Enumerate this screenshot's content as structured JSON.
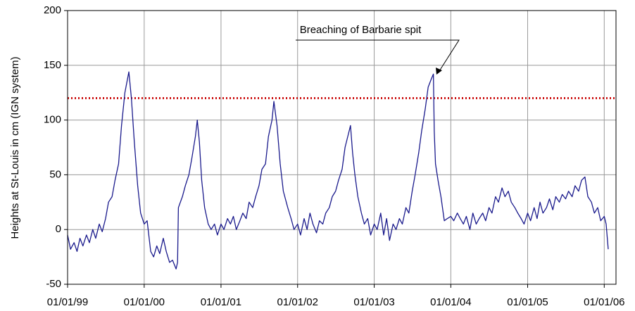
{
  "chart_data": {
    "type": "line",
    "y_label": "Heights at St-Louis in cm (IGN system)",
    "annotation": "Breaching of Barbarie spit",
    "ylim": [
      -50,
      200
    ],
    "yticks": [
      -50,
      0,
      50,
      100,
      150,
      200
    ],
    "xlim": [
      "1999-01-01",
      "2006-02-26"
    ],
    "xticks": [
      {
        "value": "1999-01-01",
        "label": "01/01/99"
      },
      {
        "value": "2000-01-01",
        "label": "01/01/00"
      },
      {
        "value": "2001-01-01",
        "label": "01/01/01"
      },
      {
        "value": "2002-01-01",
        "label": "01/01/02"
      },
      {
        "value": "2003-01-01",
        "label": "01/01/03"
      },
      {
        "value": "2004-01-01",
        "label": "01/01/04"
      },
      {
        "value": "2005-01-01",
        "label": "01/01/05"
      },
      {
        "value": "2006-01-01",
        "label": "01/01/06"
      }
    ],
    "grid": true,
    "threshold": {
      "value": 120,
      "color": "#cc1111"
    },
    "x": [
      "1999-01-01",
      "1999-01-15",
      "1999-02-01",
      "1999-02-15",
      "1999-03-01",
      "1999-03-15",
      "1999-04-01",
      "1999-04-15",
      "1999-05-01",
      "1999-05-15",
      "1999-06-01",
      "1999-06-15",
      "1999-07-01",
      "1999-07-15",
      "1999-08-01",
      "1999-08-15",
      "1999-09-01",
      "1999-09-15",
      "1999-10-01",
      "1999-10-20",
      "1999-11-01",
      "1999-11-15",
      "1999-12-01",
      "1999-12-15",
      "2000-01-01",
      "2000-01-15",
      "2000-02-01",
      "2000-02-15",
      "2000-03-01",
      "2000-03-15",
      "2000-04-01",
      "2000-04-15",
      "2000-05-01",
      "2000-05-15",
      "2000-06-01",
      "2000-06-08",
      "2000-06-12",
      "2000-07-01",
      "2000-07-15",
      "2000-08-01",
      "2000-08-15",
      "2000-09-01",
      "2000-09-10",
      "2000-09-20",
      "2000-10-01",
      "2000-10-15",
      "2000-11-01",
      "2000-11-15",
      "2000-12-01",
      "2000-12-15",
      "2001-01-01",
      "2001-01-15",
      "2001-02-01",
      "2001-02-15",
      "2001-03-01",
      "2001-03-15",
      "2001-04-01",
      "2001-04-15",
      "2001-05-01",
      "2001-05-15",
      "2001-06-01",
      "2001-06-15",
      "2001-07-01",
      "2001-07-15",
      "2001-08-01",
      "2001-08-15",
      "2001-09-01",
      "2001-09-10",
      "2001-09-25",
      "2001-10-10",
      "2001-10-25",
      "2001-11-15",
      "2001-12-01",
      "2001-12-15",
      "2002-01-01",
      "2002-01-15",
      "2002-02-01",
      "2002-02-15",
      "2002-03-01",
      "2002-03-15",
      "2002-04-01",
      "2002-04-15",
      "2002-05-01",
      "2002-05-15",
      "2002-06-01",
      "2002-06-15",
      "2002-07-01",
      "2002-07-15",
      "2002-08-01",
      "2002-08-15",
      "2002-09-01",
      "2002-09-10",
      "2002-09-20",
      "2002-10-01",
      "2002-10-15",
      "2002-11-01",
      "2002-11-15",
      "2002-12-01",
      "2002-12-15",
      "2003-01-01",
      "2003-01-15",
      "2003-02-01",
      "2003-02-15",
      "2003-03-01",
      "2003-03-15",
      "2003-04-01",
      "2003-04-15",
      "2003-05-01",
      "2003-05-15",
      "2003-06-01",
      "2003-06-15",
      "2003-07-01",
      "2003-07-15",
      "2003-08-01",
      "2003-08-15",
      "2003-09-01",
      "2003-09-15",
      "2003-10-01",
      "2003-10-10",
      "2003-10-14",
      "2003-10-20",
      "2003-11-01",
      "2003-11-15",
      "2003-12-01",
      "2003-12-15",
      "2004-01-01",
      "2004-01-15",
      "2004-02-01",
      "2004-02-15",
      "2004-03-01",
      "2004-03-15",
      "2004-04-01",
      "2004-04-15",
      "2004-05-01",
      "2004-05-15",
      "2004-06-01",
      "2004-06-15",
      "2004-07-01",
      "2004-07-15",
      "2004-08-01",
      "2004-08-15",
      "2004-09-01",
      "2004-09-15",
      "2004-10-01",
      "2004-10-15",
      "2004-11-01",
      "2004-11-15",
      "2004-12-01",
      "2004-12-15",
      "2005-01-01",
      "2005-01-15",
      "2005-02-01",
      "2005-02-15",
      "2005-03-01",
      "2005-03-15",
      "2005-04-01",
      "2005-04-15",
      "2005-05-01",
      "2005-05-15",
      "2005-06-01",
      "2005-06-15",
      "2005-07-01",
      "2005-07-15",
      "2005-08-01",
      "2005-08-15",
      "2005-09-01",
      "2005-09-15",
      "2005-10-01",
      "2005-10-15",
      "2005-11-01",
      "2005-11-15",
      "2005-12-01",
      "2005-12-15",
      "2006-01-01",
      "2006-01-10",
      "2006-01-20"
    ],
    "series": [
      {
        "color": "#1a1a8c",
        "values": [
          -5,
          -18,
          -12,
          -20,
          -8,
          -15,
          -5,
          -12,
          0,
          -8,
          5,
          -2,
          10,
          25,
          30,
          45,
          60,
          95,
          125,
          144,
          120,
          80,
          40,
          15,
          5,
          8,
          -20,
          -25,
          -15,
          -22,
          -8,
          -20,
          -30,
          -28,
          -36,
          -30,
          20,
          30,
          40,
          50,
          65,
          85,
          100,
          80,
          45,
          20,
          5,
          0,
          5,
          -5,
          5,
          0,
          10,
          5,
          12,
          0,
          8,
          15,
          10,
          25,
          20,
          30,
          40,
          55,
          60,
          85,
          100,
          117,
          95,
          60,
          35,
          20,
          10,
          0,
          5,
          -5,
          10,
          0,
          15,
          5,
          -3,
          8,
          5,
          15,
          20,
          30,
          35,
          45,
          55,
          75,
          88,
          95,
          70,
          50,
          30,
          15,
          5,
          10,
          -5,
          5,
          0,
          15,
          -5,
          10,
          -10,
          5,
          0,
          10,
          5,
          20,
          15,
          35,
          50,
          70,
          90,
          110,
          130,
          138,
          142,
          90,
          60,
          45,
          30,
          8,
          10,
          12,
          8,
          15,
          10,
          5,
          12,
          0,
          15,
          5,
          10,
          15,
          8,
          20,
          15,
          30,
          25,
          38,
          30,
          35,
          25,
          20,
          15,
          10,
          5,
          15,
          8,
          20,
          10,
          25,
          15,
          20,
          28,
          18,
          30,
          25,
          32,
          28,
          35,
          30,
          40,
          35,
          45,
          48,
          30,
          25,
          15,
          20,
          8,
          12,
          5,
          -18
        ]
      }
    ]
  }
}
